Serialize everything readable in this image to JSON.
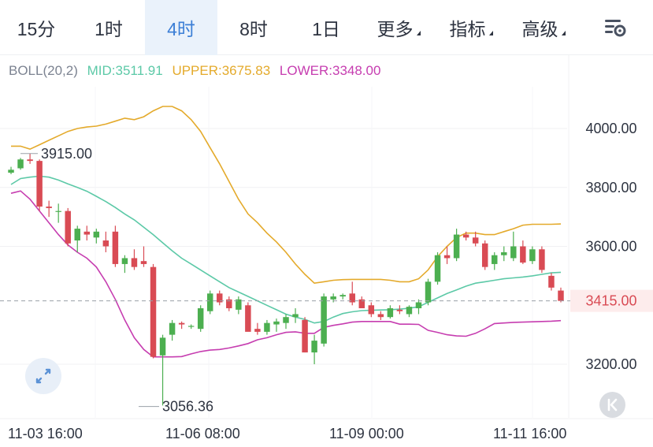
{
  "toolbar": {
    "tabs": [
      {
        "label": "15分",
        "active": false,
        "dropdown": false
      },
      {
        "label": "1时",
        "active": false,
        "dropdown": false
      },
      {
        "label": "4时",
        "active": true,
        "dropdown": false
      },
      {
        "label": "8时",
        "active": false,
        "dropdown": false
      },
      {
        "label": "1日",
        "active": false,
        "dropdown": false
      },
      {
        "label": "更多",
        "active": false,
        "dropdown": true
      },
      {
        "label": "指标",
        "active": false,
        "dropdown": true
      },
      {
        "label": "高级",
        "active": false,
        "dropdown": true
      }
    ],
    "settings_icon": "chart-settings-icon"
  },
  "indicator": {
    "name": "BOLL(20,2)",
    "mid": "MID:3511.91",
    "upper": "UPPER:3675.83",
    "lower": "LOWER:3348.00"
  },
  "colors": {
    "up": "#4caf50",
    "down": "#d94b54",
    "mid": "#5cc9a7",
    "upper": "#e4aa2b",
    "lower": "#c63db0",
    "active_tab": "#3c7fd6",
    "price_tag_bg": "#fdecec"
  },
  "chart_data": {
    "type": "candlestick",
    "y_ticks": [
      4000,
      3800,
      3600,
      3200
    ],
    "y_tick_labels": [
      "4000.00",
      "3800.00",
      "3600.00",
      "3200.00"
    ],
    "ylim": [
      3040,
      4120
    ],
    "current_price": 3415.0,
    "current_price_label": "3415.00",
    "high_marker": {
      "value": 3915.0,
      "label": "3915.00"
    },
    "low_marker": {
      "value": 3056.36,
      "label": "3056.36"
    },
    "x_labels": [
      "11-03 16:00",
      "11-06 08:00",
      "11-09 00:00",
      "11-11 16:00"
    ],
    "candles": [
      [
        3850,
        3870,
        3845,
        3860
      ],
      [
        3865,
        3900,
        3860,
        3895
      ],
      [
        3895,
        3915,
        3880,
        3890
      ],
      [
        3890,
        3895,
        3720,
        3735
      ],
      [
        3735,
        3755,
        3700,
        3730
      ],
      [
        3720,
        3745,
        3680,
        3720
      ],
      [
        3720,
        3730,
        3600,
        3610
      ],
      [
        3620,
        3670,
        3580,
        3660
      ],
      [
        3650,
        3670,
        3620,
        3640
      ],
      [
        3630,
        3660,
        3610,
        3650
      ],
      [
        3620,
        3650,
        3580,
        3600
      ],
      [
        3650,
        3670,
        3530,
        3540
      ],
      [
        3540,
        3570,
        3510,
        3560
      ],
      [
        3560,
        3590,
        3520,
        3530
      ],
      [
        3550,
        3600,
        3530,
        3540
      ],
      [
        3530,
        3540,
        3220,
        3225
      ],
      [
        3230,
        3300,
        3060,
        3290
      ],
      [
        3300,
        3350,
        3280,
        3340
      ],
      [
        3340,
        3345,
        3320,
        3335
      ],
      [
        3330,
        3335,
        3320,
        3330
      ],
      [
        3320,
        3400,
        3310,
        3390
      ],
      [
        3380,
        3450,
        3370,
        3440
      ],
      [
        3440,
        3450,
        3400,
        3410
      ],
      [
        3420,
        3430,
        3380,
        3390
      ],
      [
        3385,
        3430,
        3370,
        3420
      ],
      [
        3400,
        3410,
        3320,
        3310
      ],
      [
        3320,
        3340,
        3300,
        3310
      ],
      [
        3310,
        3350,
        3300,
        3340
      ],
      [
        3335,
        3355,
        3310,
        3345
      ],
      [
        3340,
        3370,
        3320,
        3360
      ],
      [
        3360,
        3390,
        3340,
        3370
      ],
      [
        3350,
        3360,
        3240,
        3240
      ],
      [
        3240,
        3300,
        3200,
        3280
      ],
      [
        3270,
        3440,
        3260,
        3430
      ],
      [
        3420,
        3440,
        3410,
        3430
      ],
      [
        3430,
        3440,
        3420,
        3435
      ],
      [
        3440,
        3480,
        3400,
        3410
      ],
      [
        3420,
        3430,
        3400,
        3390
      ],
      [
        3400,
        3410,
        3360,
        3370
      ],
      [
        3370,
        3380,
        3350,
        3360
      ],
      [
        3360,
        3400,
        3355,
        3390
      ],
      [
        3385,
        3400,
        3370,
        3380
      ],
      [
        3370,
        3400,
        3360,
        3395
      ],
      [
        3390,
        3420,
        3370,
        3410
      ],
      [
        3410,
        3490,
        3400,
        3480
      ],
      [
        3480,
        3580,
        3470,
        3570
      ],
      [
        3570,
        3600,
        3540,
        3560
      ],
      [
        3560,
        3660,
        3550,
        3640
      ],
      [
        3640,
        3650,
        3620,
        3630
      ],
      [
        3630,
        3650,
        3600,
        3610
      ],
      [
        3610,
        3620,
        3520,
        3530
      ],
      [
        3540,
        3580,
        3520,
        3570
      ],
      [
        3570,
        3600,
        3550,
        3580
      ],
      [
        3560,
        3650,
        3550,
        3600
      ],
      [
        3600,
        3620,
        3540,
        3545
      ],
      [
        3550,
        3600,
        3540,
        3590
      ],
      [
        3590,
        3600,
        3510,
        3520
      ],
      [
        3500,
        3510,
        3450,
        3460
      ],
      [
        3450,
        3460,
        3410,
        3415
      ]
    ],
    "mid_line": [
      3810,
      3830,
      3835,
      3838,
      3835,
      3825,
      3812,
      3800,
      3787,
      3770,
      3752,
      3732,
      3710,
      3690,
      3665,
      3640,
      3612,
      3585,
      3560,
      3540,
      3520,
      3500,
      3480,
      3460,
      3445,
      3430,
      3415,
      3400,
      3385,
      3370,
      3360,
      3352,
      3340,
      3345,
      3360,
      3372,
      3378,
      3382,
      3383,
      3384,
      3385,
      3387,
      3390,
      3395,
      3410,
      3425,
      3440,
      3452,
      3465,
      3475,
      3480,
      3485,
      3490,
      3493,
      3496,
      3500,
      3505,
      3510,
      3512
    ],
    "upper_line": [
      3940,
      3940,
      3930,
      3945,
      3960,
      3975,
      3990,
      4000,
      4005,
      4008,
      4015,
      4025,
      4035,
      4030,
      4040,
      4060,
      4075,
      4075,
      4060,
      4030,
      3990,
      3935,
      3880,
      3820,
      3760,
      3710,
      3680,
      3645,
      3615,
      3580,
      3540,
      3505,
      3475,
      3480,
      3485,
      3487,
      3488,
      3488,
      3488,
      3488,
      3485,
      3480,
      3480,
      3490,
      3520,
      3565,
      3600,
      3630,
      3645,
      3645,
      3640,
      3640,
      3650,
      3660,
      3672,
      3675,
      3675,
      3675,
      3676
    ],
    "lower_line": [
      3780,
      3788,
      3760,
      3720,
      3680,
      3640,
      3605,
      3580,
      3560,
      3530,
      3480,
      3420,
      3350,
      3290,
      3250,
      3225,
      3225,
      3225,
      3226,
      3235,
      3243,
      3248,
      3250,
      3255,
      3262,
      3270,
      3283,
      3290,
      3300,
      3308,
      3310,
      3305,
      3305,
      3325,
      3332,
      3337,
      3343,
      3345,
      3345,
      3345,
      3345,
      3336,
      3336,
      3335,
      3315,
      3308,
      3300,
      3296,
      3295,
      3305,
      3320,
      3338,
      3340,
      3342,
      3343,
      3344,
      3345,
      3346,
      3348
    ]
  }
}
